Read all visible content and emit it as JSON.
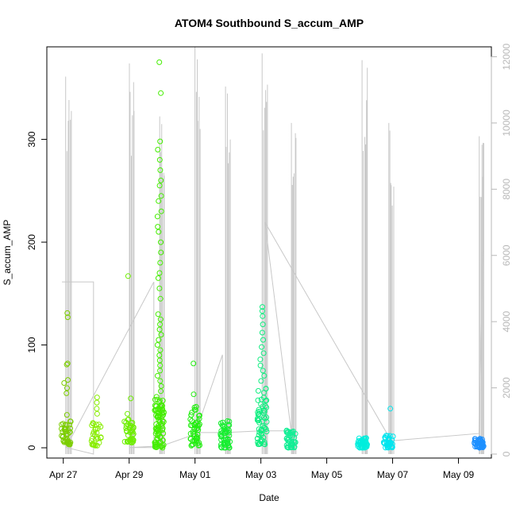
{
  "chart_data": {
    "type": "scatter",
    "title": "ATOM4 Southbound S_accum_AMP",
    "xlabel": "Date",
    "ylabel": "S_accum_AMP",
    "x_ticks": [
      "Apr 27",
      "Apr 29",
      "May 01",
      "May 03",
      "May 05",
      "May 07",
      "May 09"
    ],
    "xlim": [
      "2023-04-26T12:00",
      "2023-05-10T00:00"
    ],
    "ylim": [
      -10,
      390
    ],
    "y_ticks": [
      0,
      100,
      200,
      300
    ],
    "y2lim": [
      -120,
      12300
    ],
    "y2_ticks": [
      0,
      2000,
      4000,
      6000,
      8000,
      10000,
      12000
    ],
    "grid": false,
    "legend": "none",
    "colors": {
      "secondary_line": "#c8c8c8",
      "axis": "#000000",
      "secondary_axis": "#b8b8b8"
    },
    "series": [
      {
        "marker": "circle-open",
        "clusters": [
          {
            "date": "2023-04-27T02:00",
            "color": "#7ccd00",
            "band": [
              3,
              26
            ],
            "n": 40,
            "outliers": [
              131,
              127,
              82,
              81,
              66,
              63,
              58,
              53,
              32
            ]
          },
          {
            "date": "2023-04-28T00:00",
            "color": "#88ee00",
            "band": [
              2,
              25
            ],
            "n": 30,
            "outliers": [
              49,
              44,
              38,
              33
            ]
          },
          {
            "date": "2023-04-29T00:00",
            "color": "#6eee00",
            "band": [
              5,
              28
            ],
            "n": 40,
            "outliers": [
              167,
              48,
              33
            ]
          },
          {
            "date": "2023-04-29T22:00",
            "color": "#44ee00",
            "band": [
              0,
              50
            ],
            "n": 90,
            "outliers": [
              375,
              345,
              298,
              290,
              280,
              270,
              260,
              255,
              245,
              240,
              230,
              225,
              215,
              210,
              200,
              190,
              180,
              170,
              165,
              155,
              145,
              130,
              125,
              120,
              115,
              110,
              105,
              100,
              95,
              90,
              85,
              80,
              75,
              70,
              65,
              60,
              55
            ]
          },
          {
            "date": "2023-05-01T00:00",
            "color": "#22ee10",
            "band": [
              2,
              40
            ],
            "n": 50,
            "outliers": [
              82,
              52
            ]
          },
          {
            "date": "2023-05-01T22:00",
            "color": "#16ee30",
            "band": [
              0,
              27
            ],
            "n": 50,
            "outliers": []
          },
          {
            "date": "2023-05-03T01:00",
            "color": "#10ee80",
            "band": [
              3,
              60
            ],
            "n": 60,
            "outliers": [
              137,
              133,
              128,
              120,
              112,
              105,
              98,
              92,
              86,
              80,
              75,
              70,
              65
            ]
          },
          {
            "date": "2023-05-03T22:00",
            "color": "#12ee95",
            "band": [
              0,
              18
            ],
            "n": 40,
            "outliers": []
          },
          {
            "date": "2023-05-06T02:00",
            "color": "#00eedd",
            "band": [
              0,
              10
            ],
            "n": 50,
            "outliers": []
          },
          {
            "date": "2023-05-06T21:00",
            "color": "#00e5ee",
            "band": [
              0,
              12
            ],
            "n": 40,
            "outliers": [
              38
            ]
          },
          {
            "date": "2023-05-09T15:00",
            "color": "#1e90ff",
            "band": [
              0,
              9
            ],
            "n": 50,
            "outliers": []
          }
        ]
      },
      {
        "axis": "secondary",
        "type": "line",
        "color": "#c8c8c8",
        "spikes": [
          {
            "date": "2023-04-27T02:00",
            "max": 11400
          },
          {
            "date": "2023-04-29T00:00",
            "max": 11800
          },
          {
            "date": "2023-04-29T22:00",
            "max": 10200
          },
          {
            "date": "2023-05-01T00:00",
            "max": 12300
          },
          {
            "date": "2023-05-01T22:00",
            "max": 11100
          },
          {
            "date": "2023-05-03T01:00",
            "max": 12100
          },
          {
            "date": "2023-05-03T22:00",
            "max": 10000
          },
          {
            "date": "2023-05-06T02:00",
            "max": 11900
          },
          {
            "date": "2023-05-06T21:00",
            "max": 10000
          },
          {
            "date": "2023-05-09T15:00",
            "max": 9600
          }
        ],
        "path": [
          [
            "2023-04-26T23:00",
            5200
          ],
          [
            "2023-04-27T22:00",
            5200
          ],
          [
            "2023-04-27T22:00",
            0
          ],
          [
            "2023-04-27T02:00",
            200
          ],
          [
            "2023-04-29T18:00",
            5200
          ],
          [
            "2023-04-29T18:00",
            200
          ],
          [
            "2023-04-29T00:00",
            200
          ],
          [
            "2023-04-30T00:00",
            250
          ],
          [
            "2023-05-01T00:00",
            600
          ],
          [
            "2023-05-01T20:00",
            3000
          ],
          [
            "2023-05-01T20:00",
            650
          ],
          [
            "2023-05-01T00:00",
            650
          ],
          [
            "2023-05-01T22:00",
            650
          ],
          [
            "2023-05-03T00:00",
            700
          ],
          [
            "2023-05-03T22:00",
            700
          ],
          [
            "2023-05-03T03:00",
            7000
          ],
          [
            "2023-05-06T23:00",
            400
          ],
          [
            "2023-05-09T15:00",
            620
          ],
          [
            "2023-05-09T18:00",
            6200
          ],
          [
            "2023-05-09T18:00",
            9400
          ]
        ]
      }
    ]
  }
}
